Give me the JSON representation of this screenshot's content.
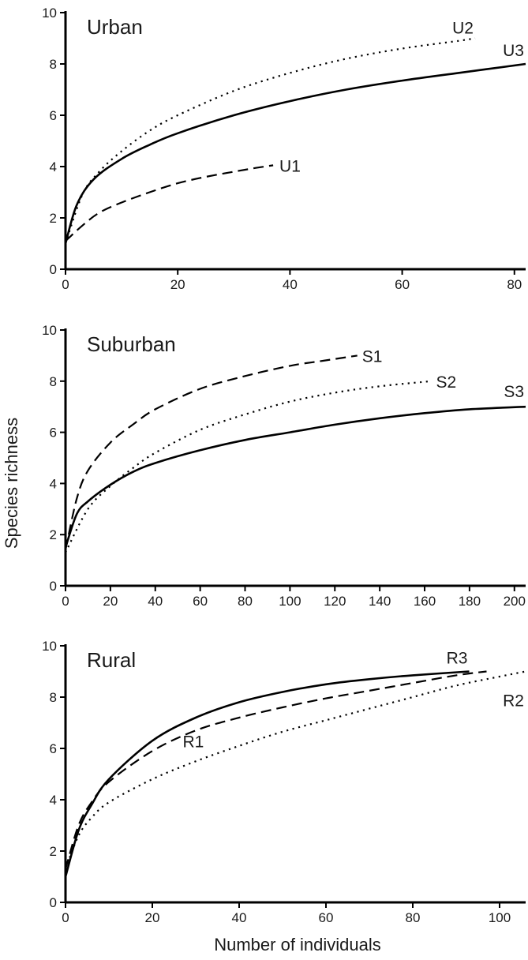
{
  "figure": {
    "ylabel": "Species richness",
    "xlabel": "Number of individuals"
  },
  "chart_data": [
    {
      "type": "line",
      "title": "Urban",
      "xlim": [
        0,
        82
      ],
      "ylim": [
        0,
        10
      ],
      "xticks": [
        0,
        20,
        40,
        60,
        80
      ],
      "yticks": [
        0,
        2,
        4,
        6,
        8,
        10
      ],
      "series": [
        {
          "name": "U1",
          "style": "dashed",
          "x": [
            0,
            3,
            6,
            10,
            15,
            20,
            25,
            30,
            34,
            37
          ],
          "y": [
            1.1,
            1.7,
            2.2,
            2.6,
            3.0,
            3.35,
            3.6,
            3.8,
            3.95,
            4.05
          ]
        },
        {
          "name": "U2",
          "style": "dotted",
          "x": [
            0,
            3,
            6,
            10,
            15,
            20,
            30,
            40,
            50,
            60,
            70,
            73
          ],
          "y": [
            1.0,
            2.9,
            3.8,
            4.6,
            5.4,
            6.0,
            6.95,
            7.65,
            8.2,
            8.6,
            8.9,
            9.0
          ]
        },
        {
          "name": "U3",
          "style": "solid",
          "x": [
            0,
            2,
            5,
            10,
            15,
            20,
            30,
            40,
            50,
            60,
            70,
            82
          ],
          "y": [
            1.0,
            2.5,
            3.5,
            4.3,
            4.85,
            5.3,
            6.0,
            6.55,
            7.0,
            7.35,
            7.65,
            8.0
          ]
        }
      ]
    },
    {
      "type": "line",
      "title": "Suburban",
      "xlim": [
        0,
        205
      ],
      "ylim": [
        0,
        10
      ],
      "xticks": [
        0,
        20,
        40,
        60,
        80,
        100,
        120,
        140,
        160,
        180,
        200
      ],
      "yticks": [
        0,
        2,
        4,
        6,
        8,
        10
      ],
      "series": [
        {
          "name": "S1",
          "style": "dashed",
          "x": [
            0,
            5,
            10,
            20,
            30,
            40,
            60,
            80,
            100,
            115,
            130
          ],
          "y": [
            1.4,
            3.4,
            4.5,
            5.6,
            6.3,
            6.9,
            7.7,
            8.2,
            8.6,
            8.8,
            9.0
          ]
        },
        {
          "name": "S2",
          "style": "dotted",
          "x": [
            0,
            10,
            20,
            30,
            40,
            60,
            80,
            100,
            120,
            140,
            163
          ],
          "y": [
            1.3,
            3.0,
            3.9,
            4.6,
            5.2,
            6.1,
            6.7,
            7.2,
            7.55,
            7.8,
            8.0
          ]
        },
        {
          "name": "S3",
          "style": "solid",
          "x": [
            0,
            5,
            10,
            20,
            30,
            40,
            60,
            80,
            100,
            120,
            140,
            160,
            180,
            205
          ],
          "y": [
            1.5,
            2.8,
            3.3,
            3.95,
            4.45,
            4.8,
            5.3,
            5.7,
            6.0,
            6.3,
            6.55,
            6.75,
            6.9,
            7.0
          ]
        }
      ]
    },
    {
      "type": "line",
      "title": "Rural",
      "xlim": [
        0,
        106
      ],
      "ylim": [
        0,
        10
      ],
      "xticks": [
        0,
        20,
        40,
        60,
        80,
        100
      ],
      "yticks": [
        0,
        2,
        4,
        6,
        8,
        10
      ],
      "series": [
        {
          "name": "R1",
          "style": "dashed",
          "x": [
            0,
            3,
            6,
            10,
            20,
            30,
            40,
            50,
            60,
            70,
            80,
            90,
            97
          ],
          "y": [
            1.3,
            3.0,
            3.9,
            4.7,
            5.9,
            6.7,
            7.2,
            7.6,
            7.95,
            8.25,
            8.55,
            8.85,
            9.0
          ]
        },
        {
          "name": "R2",
          "style": "dotted",
          "x": [
            0,
            3,
            6,
            10,
            20,
            30,
            40,
            50,
            60,
            70,
            80,
            90,
            100,
            106
          ],
          "y": [
            1.3,
            2.6,
            3.3,
            3.9,
            4.8,
            5.5,
            6.1,
            6.65,
            7.1,
            7.55,
            8.0,
            8.45,
            8.8,
            9.0
          ]
        },
        {
          "name": "R3",
          "style": "solid",
          "x": [
            0,
            3,
            6,
            10,
            20,
            30,
            40,
            50,
            60,
            70,
            80,
            93
          ],
          "y": [
            1.0,
            2.8,
            3.8,
            4.8,
            6.3,
            7.2,
            7.8,
            8.2,
            8.5,
            8.7,
            8.85,
            9.0
          ]
        }
      ]
    }
  ]
}
